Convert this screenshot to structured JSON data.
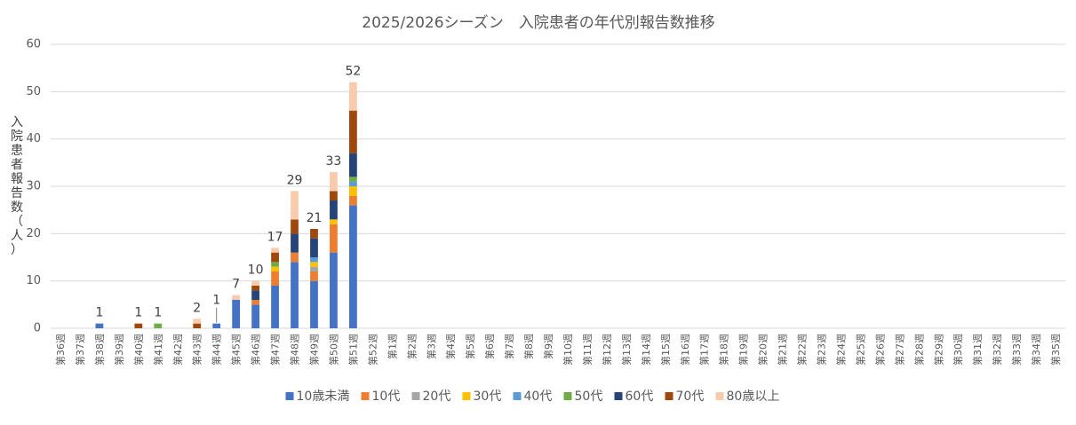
{
  "chart_data": {
    "type": "bar",
    "stacked": true,
    "title": "2025/2026シーズン　入院患者の年代別報告数推移",
    "ylabel": "入院患者報告数（人）",
    "ylim": [
      0,
      60
    ],
    "yticks": [
      0,
      10,
      20,
      30,
      40,
      50,
      60
    ],
    "grid": true,
    "legend_position": "bottom",
    "categories": [
      "第36週",
      "第37週",
      "第38週",
      "第39週",
      "第40週",
      "第41週",
      "第42週",
      "第43週",
      "第44週",
      "第45週",
      "第46週",
      "第47週",
      "第48週",
      "第49週",
      "第50週",
      "第51週",
      "第52週",
      "第1週",
      "第2週",
      "第3週",
      "第4週",
      "第5週",
      "第6週",
      "第7週",
      "第8週",
      "第9週",
      "第10週",
      "第11週",
      "第12週",
      "第13週",
      "第14週",
      "第15週",
      "第16週",
      "第17週",
      "第18週",
      "第19週",
      "第20週",
      "第21週",
      "第22週",
      "第23週",
      "第24週",
      "第25週",
      "第26週",
      "第27週",
      "第28週",
      "第29週",
      "第30週",
      "第31週",
      "第32週",
      "第33週",
      "第34週",
      "第35週"
    ],
    "series": [
      {
        "name": "10歳未満",
        "color": "#4472c4",
        "values": [
          0,
          0,
          1,
          0,
          0,
          0,
          0,
          0,
          1,
          6,
          5,
          9,
          14,
          10,
          16,
          26,
          0,
          0,
          0,
          0,
          0,
          0,
          0,
          0,
          0,
          0,
          0,
          0,
          0,
          0,
          0,
          0,
          0,
          0,
          0,
          0,
          0,
          0,
          0,
          0,
          0,
          0,
          0,
          0,
          0,
          0,
          0,
          0,
          0,
          0,
          0,
          0
        ]
      },
      {
        "name": "10代",
        "color": "#ed7d31",
        "values": [
          0,
          0,
          0,
          0,
          0,
          0,
          0,
          0,
          0,
          0,
          1,
          3,
          2,
          2,
          6,
          2,
          0,
          0,
          0,
          0,
          0,
          0,
          0,
          0,
          0,
          0,
          0,
          0,
          0,
          0,
          0,
          0,
          0,
          0,
          0,
          0,
          0,
          0,
          0,
          0,
          0,
          0,
          0,
          0,
          0,
          0,
          0,
          0,
          0,
          0,
          0,
          0
        ]
      },
      {
        "name": "20代",
        "color": "#a5a5a5",
        "values": [
          0,
          0,
          0,
          0,
          0,
          0,
          0,
          0,
          0,
          0,
          0,
          0,
          0,
          1,
          0,
          0,
          0,
          0,
          0,
          0,
          0,
          0,
          0,
          0,
          0,
          0,
          0,
          0,
          0,
          0,
          0,
          0,
          0,
          0,
          0,
          0,
          0,
          0,
          0,
          0,
          0,
          0,
          0,
          0,
          0,
          0,
          0,
          0,
          0,
          0,
          0,
          0
        ]
      },
      {
        "name": "30代",
        "color": "#ffc000",
        "values": [
          0,
          0,
          0,
          0,
          0,
          0,
          0,
          0,
          0,
          0,
          0,
          1,
          0,
          1,
          1,
          2,
          0,
          0,
          0,
          0,
          0,
          0,
          0,
          0,
          0,
          0,
          0,
          0,
          0,
          0,
          0,
          0,
          0,
          0,
          0,
          0,
          0,
          0,
          0,
          0,
          0,
          0,
          0,
          0,
          0,
          0,
          0,
          0,
          0,
          0,
          0,
          0
        ]
      },
      {
        "name": "40代",
        "color": "#5b9bd5",
        "values": [
          0,
          0,
          0,
          0,
          0,
          0,
          0,
          0,
          0,
          0,
          0,
          0,
          0,
          1,
          0,
          1,
          0,
          0,
          0,
          0,
          0,
          0,
          0,
          0,
          0,
          0,
          0,
          0,
          0,
          0,
          0,
          0,
          0,
          0,
          0,
          0,
          0,
          0,
          0,
          0,
          0,
          0,
          0,
          0,
          0,
          0,
          0,
          0,
          0,
          0,
          0,
          0
        ]
      },
      {
        "name": "50代",
        "color": "#70ad47",
        "values": [
          0,
          0,
          0,
          0,
          0,
          1,
          0,
          0,
          0,
          0,
          0,
          1,
          0,
          0,
          0,
          1,
          0,
          0,
          0,
          0,
          0,
          0,
          0,
          0,
          0,
          0,
          0,
          0,
          0,
          0,
          0,
          0,
          0,
          0,
          0,
          0,
          0,
          0,
          0,
          0,
          0,
          0,
          0,
          0,
          0,
          0,
          0,
          0,
          0,
          0,
          0,
          0
        ]
      },
      {
        "name": "60代",
        "color": "#264478",
        "values": [
          0,
          0,
          0,
          0,
          0,
          0,
          0,
          0,
          0,
          0,
          2,
          0,
          4,
          4,
          4,
          5,
          0,
          0,
          0,
          0,
          0,
          0,
          0,
          0,
          0,
          0,
          0,
          0,
          0,
          0,
          0,
          0,
          0,
          0,
          0,
          0,
          0,
          0,
          0,
          0,
          0,
          0,
          0,
          0,
          0,
          0,
          0,
          0,
          0,
          0,
          0,
          0
        ]
      },
      {
        "name": "70代",
        "color": "#9e480e",
        "values": [
          0,
          0,
          0,
          0,
          1,
          0,
          0,
          1,
          0,
          0,
          1,
          2,
          3,
          2,
          2,
          9,
          0,
          0,
          0,
          0,
          0,
          0,
          0,
          0,
          0,
          0,
          0,
          0,
          0,
          0,
          0,
          0,
          0,
          0,
          0,
          0,
          0,
          0,
          0,
          0,
          0,
          0,
          0,
          0,
          0,
          0,
          0,
          0,
          0,
          0,
          0,
          0
        ]
      },
      {
        "name": "80歳以上",
        "color": "#f8cbad",
        "values": [
          0,
          0,
          0,
          0,
          0,
          0,
          0,
          1,
          0,
          1,
          1,
          1,
          6,
          0,
          4,
          6,
          0,
          0,
          0,
          0,
          0,
          0,
          0,
          0,
          0,
          0,
          0,
          0,
          0,
          0,
          0,
          0,
          0,
          0,
          0,
          0,
          0,
          0,
          0,
          0,
          0,
          0,
          0,
          0,
          0,
          0,
          0,
          0,
          0,
          0,
          0,
          0
        ]
      }
    ],
    "totals_labels": [
      {
        "category": "第38週",
        "value": 1
      },
      {
        "category": "第40週",
        "value": 1
      },
      {
        "category": "第41週",
        "value": 1
      },
      {
        "category": "第43週",
        "value": 2
      },
      {
        "category": "第44週",
        "value": 1
      },
      {
        "category": "第45週",
        "value": 7
      },
      {
        "category": "第46週",
        "value": 10
      },
      {
        "category": "第47週",
        "value": 17
      },
      {
        "category": "第48週",
        "value": 29
      },
      {
        "category": "第49週",
        "value": 21
      },
      {
        "category": "第50週",
        "value": 33
      },
      {
        "category": "第51週",
        "value": 52
      }
    ]
  }
}
